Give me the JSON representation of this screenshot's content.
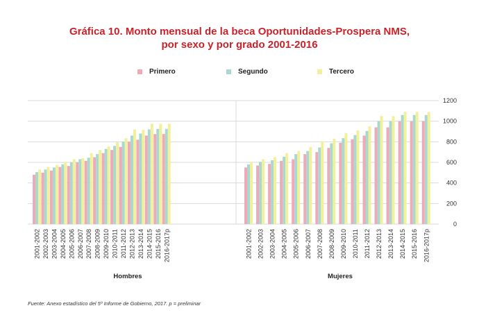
{
  "title_line1": "Gráfica 10. Monto mensual de la beca Oportunidades-Prospera NMS,",
  "title_line2": "por sexo y por grado 2001-2016",
  "source": "Fuente: Anexo estadístico del 5º Informe de Gobierno, 2017. p = preliminar",
  "colors": {
    "Primero": "#f0a9b8",
    "Segundo": "#a8d8cf",
    "Tercero": "#f2f09a",
    "grid": "#d9d9d9"
  },
  "chart_data": {
    "type": "bar",
    "title": "Gráfica 10. Monto mensual de la beca Oportunidades-Prospera NMS, por sexo y por grado 2001-2016",
    "ylim": [
      0,
      1200
    ],
    "yticks": [
      0,
      200,
      400,
      600,
      800,
      1000,
      1200
    ],
    "grid": true,
    "legend_position": "top",
    "series_names": [
      "Primero",
      "Segundo",
      "Tercero"
    ],
    "categories": [
      "2001-2002",
      "2002-2003",
      "2003-2004",
      "2004-2005",
      "2005-2006",
      "2006-2007",
      "2007-2008",
      "2008-2009",
      "2009-2010",
      "2010-2011",
      "2011-2012",
      "2012-2013",
      "2013-2014",
      "2014-2015",
      "2015-2016",
      "2016-2017p"
    ],
    "panels": [
      {
        "label": "Hombres",
        "series": [
          {
            "name": "Primero",
            "values": [
              480,
              500,
              520,
              555,
              565,
              600,
              615,
              650,
              690,
              720,
              750,
              800,
              820,
              860,
              875,
              875
            ]
          },
          {
            "name": "Segundo",
            "values": [
              505,
              530,
              550,
              580,
              600,
              630,
              645,
              680,
              730,
              760,
              800,
              860,
              880,
              920,
              925,
              925
            ]
          },
          {
            "name": "Tercero",
            "values": [
              530,
              555,
              575,
              605,
              630,
              640,
              690,
              720,
              755,
              795,
              835,
              920,
              915,
              975,
              975,
              975
            ]
          }
        ]
      },
      {
        "label": "Mujeres",
        "series": [
          {
            "name": "Primero",
            "values": [
              550,
              570,
              585,
              615,
              630,
              680,
              700,
              740,
              790,
              825,
              860,
              940,
              940,
              1000,
              1000,
              1000
            ]
          },
          {
            "name": "Segundo",
            "values": [
              580,
              605,
              620,
              655,
              680,
              710,
              745,
              785,
              835,
              865,
              905,
              1000,
              1000,
              1060,
              1060,
              1060
            ]
          },
          {
            "name": "Tercero",
            "values": [
              605,
              630,
              650,
              690,
              710,
              750,
              800,
              830,
              885,
              910,
              950,
              1050,
              1050,
              1090,
              1090,
              1090
            ]
          }
        ]
      }
    ]
  }
}
